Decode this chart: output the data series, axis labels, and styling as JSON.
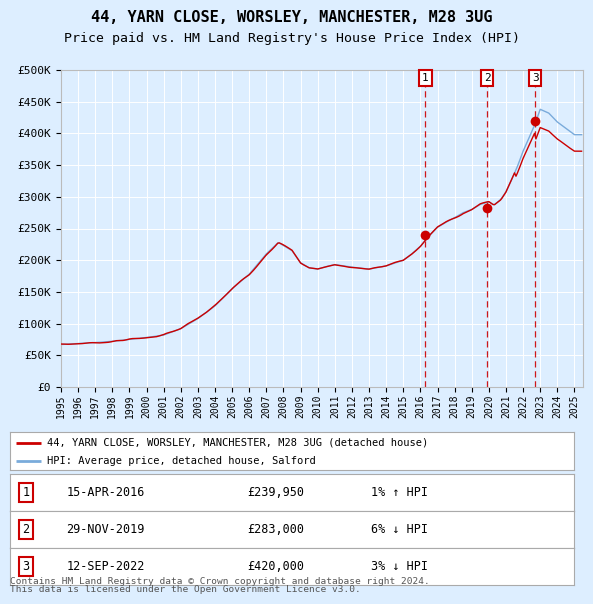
{
  "title": "44, YARN CLOSE, WORSLEY, MANCHESTER, M28 3UG",
  "subtitle": "Price paid vs. HM Land Registry's House Price Index (HPI)",
  "ylim": [
    0,
    500000
  ],
  "xlim": [
    1995.0,
    2025.5
  ],
  "yticks": [
    0,
    50000,
    100000,
    150000,
    200000,
    250000,
    300000,
    350000,
    400000,
    450000,
    500000
  ],
  "ytick_labels": [
    "£0",
    "£50K",
    "£100K",
    "£150K",
    "£200K",
    "£250K",
    "£300K",
    "£350K",
    "£400K",
    "£450K",
    "£500K"
  ],
  "xtick_years": [
    1995,
    1996,
    1997,
    1998,
    1999,
    2000,
    2001,
    2002,
    2003,
    2004,
    2005,
    2006,
    2007,
    2008,
    2009,
    2010,
    2011,
    2012,
    2013,
    2014,
    2015,
    2016,
    2017,
    2018,
    2019,
    2020,
    2021,
    2022,
    2023,
    2024,
    2025
  ],
  "line_color_hpi": "#7aabdb",
  "line_color_price": "#cc0000",
  "bg_color": "#ddeeff",
  "plot_bg": "#ddeeff",
  "grid_color": "#ffffff",
  "sale_dates_num": [
    2016.29,
    2019.91,
    2022.71
  ],
  "sale_prices": [
    239950,
    283000,
    420000
  ],
  "sale_labels": [
    "1",
    "2",
    "3"
  ],
  "vline_color": "#cc0000",
  "dot_color": "#cc0000",
  "legend_label_price": "44, YARN CLOSE, WORSLEY, MANCHESTER, M28 3UG (detached house)",
  "legend_label_hpi": "HPI: Average price, detached house, Salford",
  "table_rows": [
    {
      "num": "1",
      "date": "15-APR-2016",
      "price": "£239,950",
      "hpi": "1% ↑ HPI"
    },
    {
      "num": "2",
      "date": "29-NOV-2019",
      "price": "£283,000",
      "hpi": "6% ↓ HPI"
    },
    {
      "num": "3",
      "date": "12-SEP-2022",
      "price": "£420,000",
      "hpi": "3% ↓ HPI"
    }
  ],
  "footnote1": "Contains HM Land Registry data © Crown copyright and database right 2024.",
  "footnote2": "This data is licensed under the Open Government Licence v3.0.",
  "title_fontsize": 11,
  "subtitle_fontsize": 9.5
}
